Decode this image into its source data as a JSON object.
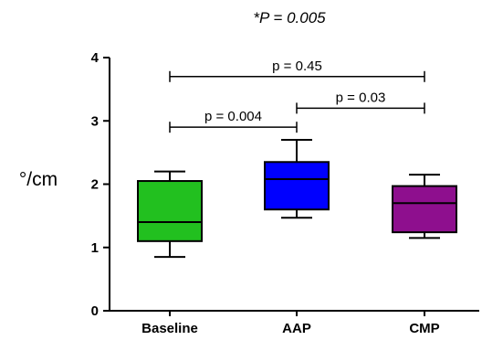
{
  "chart_data": {
    "type": "box",
    "title": "*P = 0.005",
    "ylabel": "°/cm",
    "xlabel": "",
    "ylim": [
      0,
      4
    ],
    "yticks": [
      0,
      1,
      2,
      3,
      4
    ],
    "ytick_labels": [
      "0",
      "1",
      "2",
      "3",
      "4"
    ],
    "grid": false,
    "categories": [
      "Baseline",
      "AAP",
      "CMP"
    ],
    "boxes": [
      {
        "category": "Baseline",
        "min": 0.85,
        "q1": 1.1,
        "median": 1.4,
        "q3": 2.05,
        "max": 2.2,
        "color": "#22c01f"
      },
      {
        "category": "AAP",
        "min": 1.47,
        "q1": 1.6,
        "median": 2.08,
        "q3": 2.35,
        "max": 2.7,
        "color": "#0000ff"
      },
      {
        "category": "CMP",
        "min": 1.15,
        "q1": 1.24,
        "median": 1.7,
        "q3": 1.97,
        "max": 2.15,
        "color": "#8e0f8e"
      }
    ],
    "annotations": [
      {
        "from": "Baseline",
        "to": "CMP",
        "y": 3.7,
        "label": "p = 0.45"
      },
      {
        "from": "AAP",
        "to": "CMP",
        "y": 3.2,
        "label": "p = 0.03"
      },
      {
        "from": "Baseline",
        "to": "AAP",
        "y": 2.9,
        "label": "p = 0.004"
      }
    ]
  }
}
